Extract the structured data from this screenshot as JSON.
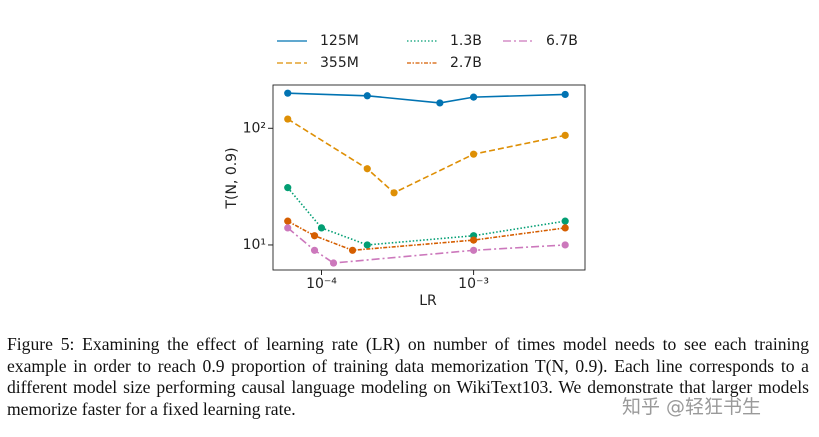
{
  "chart_data": {
    "type": "line",
    "x_label": "LR",
    "y_label": "T(N, 0.9)",
    "log_x": true,
    "log_y": true,
    "xlim": [
      4.8e-05,
      0.0054
    ],
    "ylim": [
      6.1,
      235
    ],
    "xticks": [
      {
        "value": 0.0001,
        "label": "10⁻⁴"
      },
      {
        "value": 0.001,
        "label": "10⁻³"
      }
    ],
    "yticks": [
      {
        "value": 10,
        "label": "10¹"
      },
      {
        "value": 100,
        "label": "10²"
      }
    ],
    "legend": "upper center",
    "series": [
      {
        "name": "125M",
        "color": "#0173b2",
        "dash": "none",
        "x": [
          6e-05,
          0.0002,
          0.0006,
          0.001,
          0.004
        ],
        "values": [
          200,
          190,
          165,
          185,
          195
        ]
      },
      {
        "name": "355M",
        "color": "#de8f05",
        "dash": "6 3",
        "x": [
          6e-05,
          0.0002,
          0.0003,
          0.001,
          0.004
        ],
        "values": [
          120,
          45,
          28,
          60,
          87
        ]
      },
      {
        "name": "1.3B",
        "color": "#029e73",
        "dash": "1.5 2",
        "x": [
          6e-05,
          0.0001,
          0.0002,
          0.001,
          0.004
        ],
        "values": [
          31,
          14,
          10,
          12,
          16
        ]
      },
      {
        "name": "2.7B",
        "color": "#d55e00",
        "dash": "4 1.5 1.5 1.5",
        "x": [
          6e-05,
          9e-05,
          0.00016,
          0.001,
          0.004
        ],
        "values": [
          16,
          12,
          9,
          11,
          14
        ]
      },
      {
        "name": "6.7B",
        "color": "#cc78bc",
        "dash": "8 3 2 3",
        "x": [
          6e-05,
          9e-05,
          0.00012,
          0.001,
          0.004
        ],
        "values": [
          14,
          9,
          7,
          9,
          10
        ]
      }
    ]
  },
  "caption": "Figure 5: Examining the effect of learning rate (LR) on number of times model needs to see each training example in order to reach 0.9 proportion of training data memorization T(N, 0.9). Each line corresponds to a different model size performing causal language modeling on WikiText103. We demonstrate that larger models memorize faster for a fixed learning rate.",
  "watermark": "知乎 @轻狂书生"
}
